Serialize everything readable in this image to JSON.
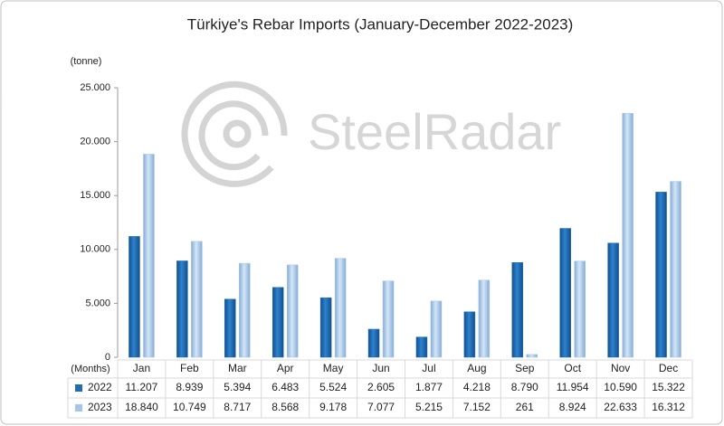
{
  "chart_data": {
    "type": "bar",
    "title": "Türkiye's Rebar Imports (January-December 2022-2023)",
    "y_label": "(tonne)",
    "x_label": "(Months)",
    "watermark": "SteelRadar",
    "categories": [
      "Jan",
      "Feb",
      "Mar",
      "Apr",
      "May",
      "Jun",
      "Jul",
      "Aug",
      "Sep",
      "Oct",
      "Nov",
      "Dec"
    ],
    "series": [
      {
        "name": "2022",
        "color": "#1f6db3",
        "values": [
          11207,
          8939,
          5394,
          6483,
          5524,
          2605,
          1877,
          4218,
          8790,
          11954,
          10590,
          15322
        ],
        "value_labels": [
          "11.207",
          "8.939",
          "5.394",
          "6.483",
          "5.524",
          "2.605",
          "1.877",
          "4.218",
          "8.790",
          "11.954",
          "10.590",
          "15.322"
        ]
      },
      {
        "name": "2023",
        "color": "#a6c6e8",
        "values": [
          18840,
          10749,
          8717,
          8568,
          9178,
          7077,
          5215,
          7152,
          261,
          8924,
          22633,
          16312
        ],
        "value_labels": [
          "18.840",
          "10.749",
          "8.717",
          "8.568",
          "9.178",
          "7.077",
          "5.215",
          "7.152",
          "261",
          "8.924",
          "22.633",
          "16.312"
        ]
      }
    ],
    "ylim": [
      0,
      25000
    ],
    "yticks": [
      0,
      {
        "value": 5000,
        "label": "5.000"
      },
      {
        "value": 10000,
        "label": "10.000"
      },
      {
        "value": 15000,
        "label": "15.000"
      },
      {
        "value": 20000,
        "label": "20.000"
      },
      {
        "value": 25000,
        "label": "25.000"
      }
    ],
    "grid": false
  }
}
